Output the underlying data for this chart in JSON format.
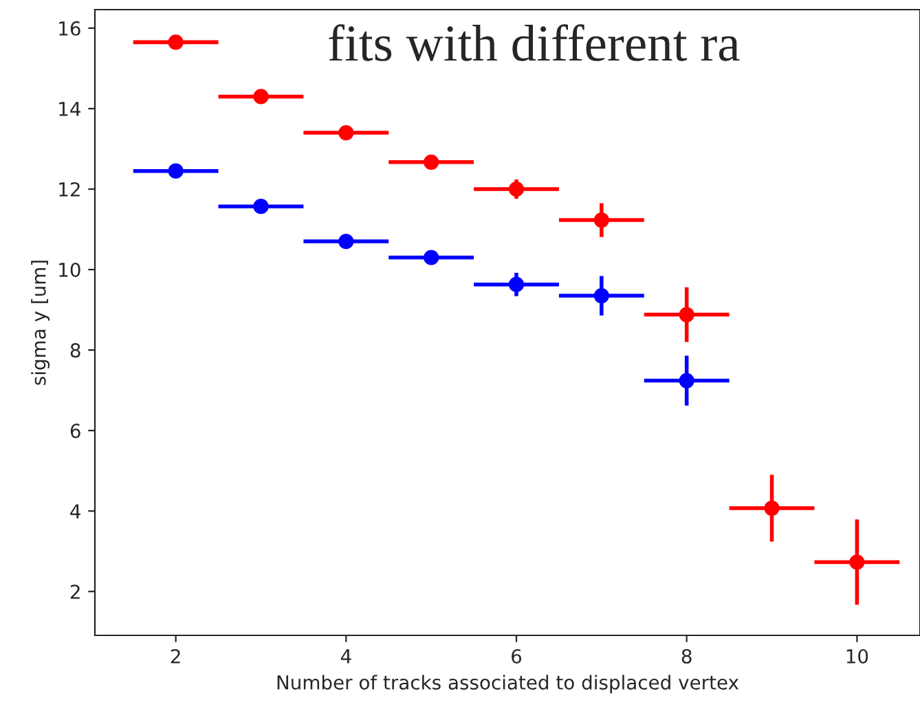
{
  "chart_data": {
    "type": "scatter",
    "xlabel": "Number of tracks associated to displaced vertex",
    "ylabel": "sigma y [um]",
    "annotations": [
      "fits with different ra"
    ],
    "series": [
      {
        "color": "#ff0000",
        "x": [
          2,
          3,
          4,
          5,
          6,
          7,
          8,
          9,
          10
        ],
        "values": [
          15.65,
          14.3,
          13.4,
          12.67,
          12.0,
          11.23,
          8.88,
          4.07,
          2.73
        ],
        "errors": [
          null,
          null,
          null,
          null,
          0.24,
          0.42,
          0.68,
          0.83,
          1.06
        ],
        "xerrors": [
          0.5,
          0.5,
          0.5,
          0.5,
          0.5,
          0.5,
          0.5,
          0.5,
          0.5
        ]
      },
      {
        "color": "#0000ff",
        "x": [
          2,
          3,
          4,
          5,
          6,
          7,
          8
        ],
        "values": [
          12.45,
          11.57,
          10.7,
          10.3,
          9.63,
          9.35,
          7.24
        ],
        "errors": [
          null,
          null,
          null,
          null,
          0.29,
          0.49,
          0.62
        ],
        "xerrors": [
          0.5,
          0.5,
          0.5,
          0.5,
          0.5,
          0.5,
          0.5
        ]
      }
    ],
    "marker": "circle",
    "grid": false,
    "xlim": [
      1.05,
      10.74
    ],
    "ylim": [
      0.91,
      16.46
    ],
    "xticks": [
      2,
      4,
      6,
      8,
      10
    ],
    "yticks": [
      2,
      4,
      6,
      8,
      10,
      12,
      14,
      16
    ]
  }
}
